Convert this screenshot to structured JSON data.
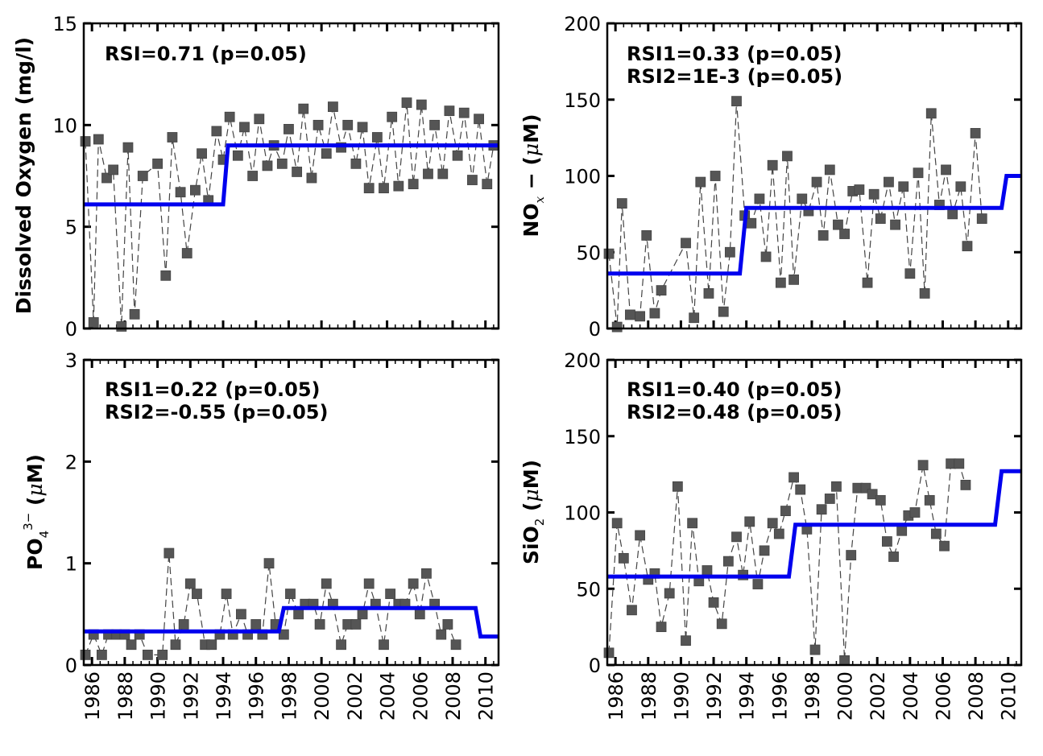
{
  "colors": {
    "step_line": "#0000ee",
    "marker": "#555555",
    "connector": "#444444"
  },
  "chart_data": [
    {
      "type": "scatter",
      "id": "do",
      "ylabel": "Dissolved Oxygen (mg/l)",
      "ylim": [
        0,
        15
      ],
      "yticks": [
        0,
        5,
        10,
        15
      ],
      "xlim": [
        1985.5,
        2010.8
      ],
      "xticks": [
        1986,
        1988,
        1990,
        1992,
        1994,
        1996,
        1998,
        2000,
        2002,
        2004,
        2006,
        2008,
        2010
      ],
      "show_xticklabels": false,
      "annotations": [
        "RSI=0.71 (p=0.05)"
      ],
      "x": [
        1985.6,
        1986.1,
        1986.4,
        1986.9,
        1987.3,
        1987.8,
        1988.2,
        1988.6,
        1989.1,
        1989.5,
        1990.0,
        1990.5,
        1990.9,
        1991.4,
        1991.8,
        1992.3,
        1992.7,
        1993.1,
        1993.6,
        1994.0,
        1994.4,
        1994.9,
        1995.3,
        1995.8,
        1996.2,
        1996.7,
        1997.1,
        1997.6,
        1998.0,
        1998.5,
        1998.9,
        1999.4,
        1999.8,
        2000.3,
        2000.7,
        2001.2,
        2001.6,
        2002.1,
        2002.5,
        2002.9,
        2003.4,
        2003.8,
        2004.3,
        2004.7,
        2005.2,
        2005.6,
        2006.1,
        2006.5,
        2006.9,
        2007.4,
        2007.8,
        2008.3,
        2008.7,
        2009.2,
        2009.6,
        2010.1,
        2010.5
      ],
      "y": [
        9.2,
        0.3,
        9.3,
        7.4,
        7.8,
        0.1,
        8.9,
        0.7,
        7.5,
        null,
        8.1,
        2.6,
        9.4,
        6.7,
        3.7,
        6.8,
        8.6,
        6.3,
        9.7,
        8.3,
        10.4,
        8.5,
        9.9,
        7.5,
        10.3,
        8.0,
        9.0,
        8.1,
        9.8,
        7.7,
        10.8,
        7.4,
        10.0,
        8.6,
        10.9,
        8.9,
        10.0,
        8.1,
        9.9,
        6.9,
        9.4,
        6.9,
        10.4,
        7.0,
        11.1,
        7.1,
        11.0,
        7.6,
        10.0,
        7.6,
        10.7,
        8.5,
        10.6,
        7.3,
        10.3,
        7.1,
        9.0
      ],
      "step_segments": [
        {
          "from": 1985.5,
          "to": 1994.0,
          "value": 6.1
        },
        {
          "from": 1994.3,
          "to": 2010.8,
          "value": 9.0
        }
      ]
    },
    {
      "type": "scatter",
      "id": "nox",
      "ylabel": "NOx- (μM)",
      "ylim": [
        0,
        200
      ],
      "yticks": [
        0,
        50,
        100,
        150,
        200
      ],
      "xlim": [
        1985.5,
        2010.8
      ],
      "xticks": [
        1986,
        1988,
        1990,
        1992,
        1994,
        1996,
        1998,
        2000,
        2002,
        2004,
        2006,
        2008,
        2010
      ],
      "show_xticklabels": false,
      "annotations": [
        "RSI1=0.33 (p=0.05)",
        "RSI2=1E-3 (p=0.05)"
      ],
      "x": [
        1985.6,
        1986.1,
        1986.4,
        1986.9,
        1987.5,
        1987.9,
        1988.4,
        1988.8,
        1989.4,
        1989.9,
        1990.3,
        1990.8,
        1991.2,
        1991.7,
        1992.1,
        1992.6,
        1993.0,
        1993.4,
        1993.9,
        1994.3,
        1994.8,
        1995.2,
        1995.6,
        1996.1,
        1996.5,
        1996.9,
        1997.4,
        1997.8,
        1998.3,
        1998.7,
        1999.1,
        1999.6,
        2000.0,
        2000.5,
        2000.9,
        2001.4,
        2001.8,
        2002.2,
        2002.7,
        2003.1,
        2003.6,
        2004.0,
        2004.5,
        2004.9,
        2005.3,
        2005.8,
        2006.2,
        2006.6,
        2007.1,
        2007.5,
        2008.0,
        2008.4,
        2008.9,
        2009.3,
        2009.7,
        2010.2,
        2010.6
      ],
      "y": [
        49,
        1,
        82,
        9,
        8,
        61,
        10,
        25,
        null,
        null,
        56,
        7,
        96,
        23,
        100,
        11,
        50,
        149,
        74,
        69,
        85,
        47,
        107,
        30,
        113,
        32,
        85,
        77,
        96,
        61,
        104,
        68,
        62,
        90,
        91,
        30,
        88,
        72,
        96,
        68,
        93,
        36,
        102,
        23,
        141,
        81,
        104,
        75,
        93,
        54,
        128,
        72,
        null,
        null,
        null,
        null,
        null
      ],
      "step_segments": [
        {
          "from": 1985.5,
          "to": 1993.6,
          "value": 36
        },
        {
          "from": 1994.0,
          "to": 2009.6,
          "value": 79
        },
        {
          "from": 2009.9,
          "to": 2010.8,
          "value": 100
        }
      ]
    },
    {
      "type": "scatter",
      "id": "po4",
      "ylabel": "PO43- (μM)",
      "ylim": [
        0,
        3
      ],
      "yticks": [
        0,
        1,
        2,
        3
      ],
      "xlim": [
        1985.5,
        2010.8
      ],
      "xticks": [
        1986,
        1988,
        1990,
        1992,
        1994,
        1996,
        1998,
        2000,
        2002,
        2004,
        2006,
        2008,
        2010
      ],
      "xticklabels": [
        "1986",
        "1988",
        "1990",
        "1992",
        "1994",
        "1996",
        "1998",
        "2000",
        "2002",
        "2004",
        "2006",
        "2008",
        "2010"
      ],
      "show_xticklabels": true,
      "annotations": [
        "RSI1=0.22 (p=0.05)",
        "RSI2=-0.55 (p=0.05)"
      ],
      "x": [
        1985.6,
        1986.1,
        1986.6,
        1987.0,
        1987.5,
        1988.0,
        1988.4,
        1988.9,
        1989.4,
        1989.9,
        1990.3,
        1990.7,
        1991.1,
        1991.6,
        1992.0,
        1992.4,
        1992.9,
        1993.3,
        1993.8,
        1994.2,
        1994.6,
        1995.1,
        1995.5,
        1996.0,
        1996.4,
        1996.8,
        1997.2,
        1997.7,
        1998.1,
        1998.6,
        1999.0,
        1999.5,
        1999.9,
        2000.3,
        2000.7,
        2001.2,
        2001.6,
        2002.1,
        2002.5,
        2002.9,
        2003.3,
        2003.8,
        2004.2,
        2004.7,
        2005.1,
        2005.6,
        2006.0,
        2006.4,
        2006.9,
        2007.3,
        2007.7,
        2008.2,
        2008.6,
        2009.1,
        2009.6,
        2010.0,
        2010.5
      ],
      "y": [
        0.1,
        0.3,
        0.1,
        0.3,
        0.3,
        0.3,
        0.2,
        0.3,
        0.1,
        null,
        0.1,
        1.1,
        0.2,
        0.4,
        0.8,
        0.7,
        0.2,
        0.2,
        0.3,
        0.7,
        0.3,
        0.5,
        0.3,
        0.4,
        0.3,
        1.0,
        0.4,
        0.3,
        0.7,
        0.5,
        0.6,
        0.6,
        0.4,
        0.8,
        0.6,
        0.2,
        0.4,
        0.4,
        0.5,
        0.8,
        0.6,
        0.2,
        0.7,
        0.6,
        0.6,
        0.8,
        0.5,
        0.9,
        0.6,
        0.3,
        0.4,
        0.2,
        null,
        null,
        null,
        null,
        null
      ],
      "step_segments": [
        {
          "from": 1985.5,
          "to": 1997.4,
          "value": 0.33
        },
        {
          "from": 1997.7,
          "to": 2009.4,
          "value": 0.56
        },
        {
          "from": 2009.7,
          "to": 2010.8,
          "value": 0.28
        }
      ]
    },
    {
      "type": "scatter",
      "id": "sio2",
      "ylabel": "SiO2 (μM)",
      "ylim": [
        0,
        200
      ],
      "yticks": [
        0,
        50,
        100,
        150,
        200
      ],
      "xlim": [
        1985.5,
        2010.8
      ],
      "xticks": [
        1986,
        1988,
        1990,
        1992,
        1994,
        1996,
        1998,
        2000,
        2002,
        2004,
        2006,
        2008,
        2010
      ],
      "xticklabels": [
        "1986",
        "1988",
        "1990",
        "1992",
        "1994",
        "1996",
        "1998",
        "2000",
        "2002",
        "2004",
        "2006",
        "2008",
        "2010"
      ],
      "show_xticklabels": true,
      "annotations": [
        "RSI1=0.40 (p=0.05)",
        "RSI2=0.48 (p=0.05)"
      ],
      "x": [
        1985.6,
        1986.1,
        1986.5,
        1987.0,
        1987.5,
        1988.0,
        1988.4,
        1988.8,
        1989.3,
        1989.8,
        1990.3,
        1990.7,
        1991.1,
        1991.6,
        1992.0,
        1992.5,
        1992.9,
        1993.4,
        1993.8,
        1994.2,
        1994.7,
        1995.1,
        1995.6,
        1996.0,
        1996.4,
        1996.9,
        1997.3,
        1997.7,
        1998.2,
        1998.6,
        1999.1,
        1999.5,
        2000.0,
        2000.4,
        2000.8,
        2001.3,
        2001.7,
        2002.2,
        2002.6,
        2003.0,
        2003.5,
        2003.9,
        2004.3,
        2004.8,
        2005.2,
        2005.6,
        2006.1,
        2006.5,
        2007.0,
        2007.4,
        2007.8,
        2008.3,
        2008.7,
        2009.1,
        2009.6,
        2010.0,
        2010.5
      ],
      "y": [
        8,
        93,
        70,
        36,
        85,
        56,
        60,
        25,
        47,
        117,
        16,
        93,
        55,
        62,
        41,
        27,
        68,
        84,
        59,
        94,
        53,
        75,
        93,
        86,
        101,
        123,
        115,
        89,
        10,
        102,
        109,
        117,
        3,
        72,
        116,
        116,
        112,
        108,
        81,
        71,
        88,
        98,
        100,
        131,
        108,
        86,
        78,
        132,
        132,
        118,
        null,
        null,
        null,
        null,
        null,
        null,
        null
      ],
      "step_segments": [
        {
          "from": 1985.5,
          "to": 1996.6,
          "value": 58
        },
        {
          "from": 1997.0,
          "to": 2009.2,
          "value": 92
        },
        {
          "from": 2009.6,
          "to": 2010.8,
          "value": 127
        }
      ]
    }
  ]
}
